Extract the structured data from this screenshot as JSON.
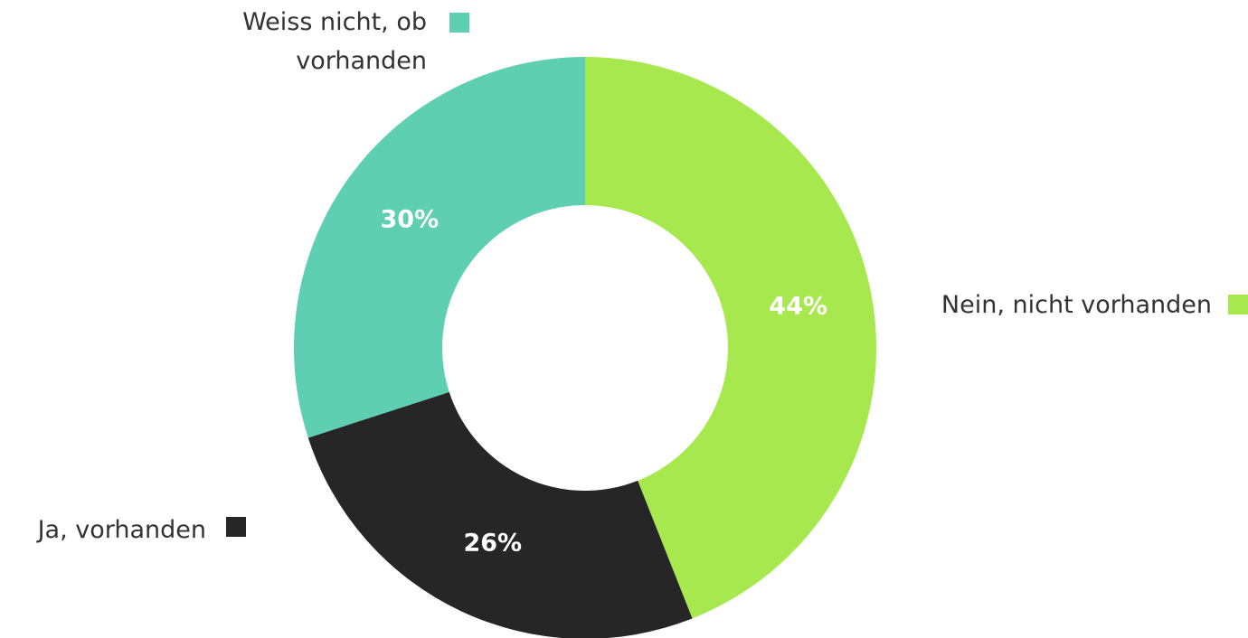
{
  "chart_data": {
    "type": "pie",
    "donut": true,
    "categories": [
      "Nein, nicht vorhanden",
      "Ja, vorhanden",
      "Weiss nicht, ob vorhanden"
    ],
    "values": [
      44,
      26,
      30
    ],
    "value_labels": [
      "44%",
      "26%",
      "30%"
    ],
    "colors": [
      "#a8e84f",
      "#262626",
      "#5ecfb0"
    ]
  }
}
